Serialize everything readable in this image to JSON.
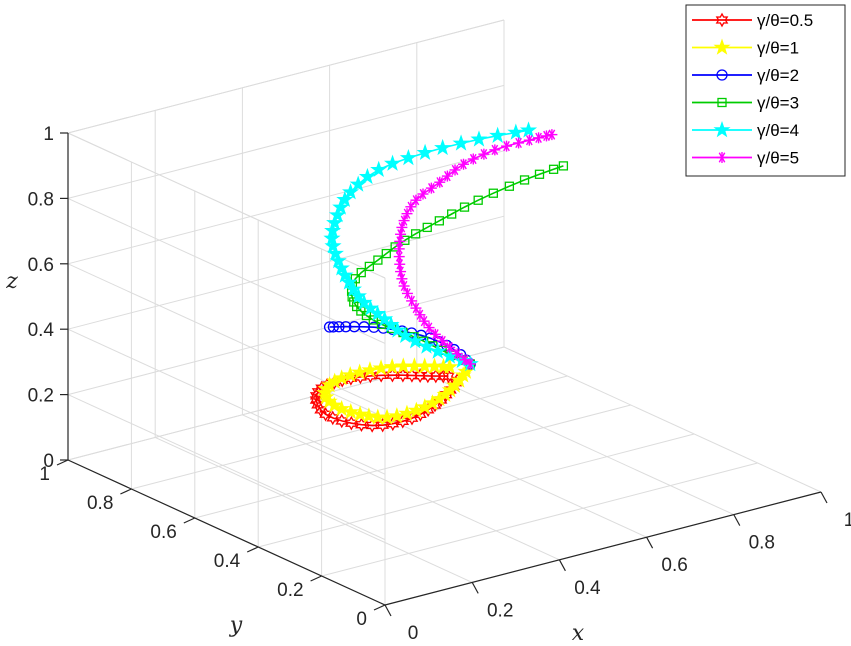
{
  "chart_data": {
    "type": "line",
    "title": "",
    "xlabel": "x",
    "ylabel": "y",
    "zlabel": "z",
    "xlim": [
      0,
      1
    ],
    "ylim": [
      0,
      1
    ],
    "zlim": [
      0,
      1
    ],
    "x_ticks": [
      "0",
      "0.2",
      "0.4",
      "0.6",
      "0.8",
      "1"
    ],
    "y_ticks": [
      "0",
      "0.2",
      "0.4",
      "0.6",
      "0.8",
      "1"
    ],
    "z_ticks": [
      "0",
      "0.2",
      "0.4",
      "0.6",
      "0.8",
      "1"
    ],
    "grid": true,
    "legend_position": "top-right",
    "series": [
      {
        "name": "γ/θ=0.5",
        "color": "#ff0000",
        "marker": "hexagram",
        "points": [
          [
            0.5,
            0.46,
            0.31
          ],
          [
            0.47,
            0.44,
            0.3
          ],
          [
            0.42,
            0.42,
            0.28
          ],
          [
            0.36,
            0.41,
            0.265
          ],
          [
            0.3,
            0.42,
            0.26
          ],
          [
            0.25,
            0.45,
            0.27
          ],
          [
            0.22,
            0.49,
            0.29
          ],
          [
            0.22,
            0.52,
            0.32
          ],
          [
            0.24,
            0.53,
            0.345
          ],
          [
            0.28,
            0.52,
            0.36
          ],
          [
            0.33,
            0.5,
            0.365
          ],
          [
            0.39,
            0.48,
            0.355
          ],
          [
            0.44,
            0.47,
            0.34
          ],
          [
            0.48,
            0.46,
            0.33
          ]
        ]
      },
      {
        "name": "γ/θ=1",
        "color": "#ffff00",
        "marker": "pentagram",
        "points": [
          [
            0.52,
            0.46,
            0.33
          ],
          [
            0.48,
            0.44,
            0.31
          ],
          [
            0.43,
            0.42,
            0.295
          ],
          [
            0.37,
            0.41,
            0.285
          ],
          [
            0.31,
            0.42,
            0.28
          ],
          [
            0.27,
            0.45,
            0.29
          ],
          [
            0.24,
            0.49,
            0.31
          ],
          [
            0.24,
            0.52,
            0.335
          ],
          [
            0.27,
            0.53,
            0.355
          ],
          [
            0.32,
            0.52,
            0.37
          ],
          [
            0.38,
            0.5,
            0.375
          ],
          [
            0.44,
            0.48,
            0.365
          ],
          [
            0.49,
            0.47,
            0.35
          ]
        ]
      },
      {
        "name": "γ/θ=2",
        "color": "#0000ff",
        "marker": "circle",
        "points": [
          [
            0.53,
            0.46,
            0.35
          ],
          [
            0.5,
            0.47,
            0.4
          ],
          [
            0.46,
            0.49,
            0.44
          ],
          [
            0.41,
            0.51,
            0.47
          ],
          [
            0.36,
            0.53,
            0.49
          ],
          [
            0.31,
            0.55,
            0.5
          ],
          [
            0.28,
            0.56,
            0.505
          ]
        ]
      },
      {
        "name": "γ/θ=3",
        "color": "#00cc00",
        "marker": "square",
        "points": [
          [
            0.53,
            0.46,
            0.35
          ],
          [
            0.48,
            0.48,
            0.4
          ],
          [
            0.43,
            0.5,
            0.45
          ],
          [
            0.37,
            0.52,
            0.5
          ],
          [
            0.33,
            0.53,
            0.55
          ],
          [
            0.31,
            0.53,
            0.6
          ],
          [
            0.31,
            0.52,
            0.66
          ],
          [
            0.34,
            0.49,
            0.72
          ],
          [
            0.38,
            0.46,
            0.78
          ],
          [
            0.43,
            0.42,
            0.84
          ],
          [
            0.49,
            0.38,
            0.9
          ],
          [
            0.56,
            0.33,
            0.96
          ],
          [
            0.62,
            0.29,
            1.0
          ]
        ]
      },
      {
        "name": "γ/θ=4",
        "color": "#00ffff",
        "marker": "pentagram",
        "points": [
          [
            0.53,
            0.46,
            0.35
          ],
          [
            0.47,
            0.48,
            0.4
          ],
          [
            0.41,
            0.5,
            0.46
          ],
          [
            0.37,
            0.51,
            0.52
          ],
          [
            0.33,
            0.52,
            0.58
          ],
          [
            0.31,
            0.54,
            0.64
          ],
          [
            0.3,
            0.56,
            0.7
          ],
          [
            0.3,
            0.58,
            0.76
          ],
          [
            0.32,
            0.59,
            0.82
          ],
          [
            0.35,
            0.59,
            0.88
          ],
          [
            0.4,
            0.57,
            0.94
          ],
          [
            0.47,
            0.52,
            0.99
          ],
          [
            0.55,
            0.46,
            1.03
          ],
          [
            0.62,
            0.4,
            1.06
          ]
        ]
      },
      {
        "name": "γ/θ=5",
        "color": "#ff00ff",
        "marker": "asterisk",
        "points": [
          [
            0.53,
            0.46,
            0.35
          ],
          [
            0.49,
            0.47,
            0.41
          ],
          [
            0.45,
            0.48,
            0.48
          ],
          [
            0.42,
            0.48,
            0.55
          ],
          [
            0.4,
            0.49,
            0.62
          ],
          [
            0.39,
            0.49,
            0.69
          ],
          [
            0.39,
            0.49,
            0.76
          ],
          [
            0.4,
            0.49,
            0.82
          ],
          [
            0.42,
            0.48,
            0.88
          ],
          [
            0.46,
            0.46,
            0.93
          ],
          [
            0.5,
            0.44,
            0.98
          ],
          [
            0.55,
            0.41,
            1.02
          ],
          [
            0.6,
            0.37,
            1.05
          ],
          [
            0.63,
            0.34,
            1.07
          ]
        ]
      }
    ]
  }
}
